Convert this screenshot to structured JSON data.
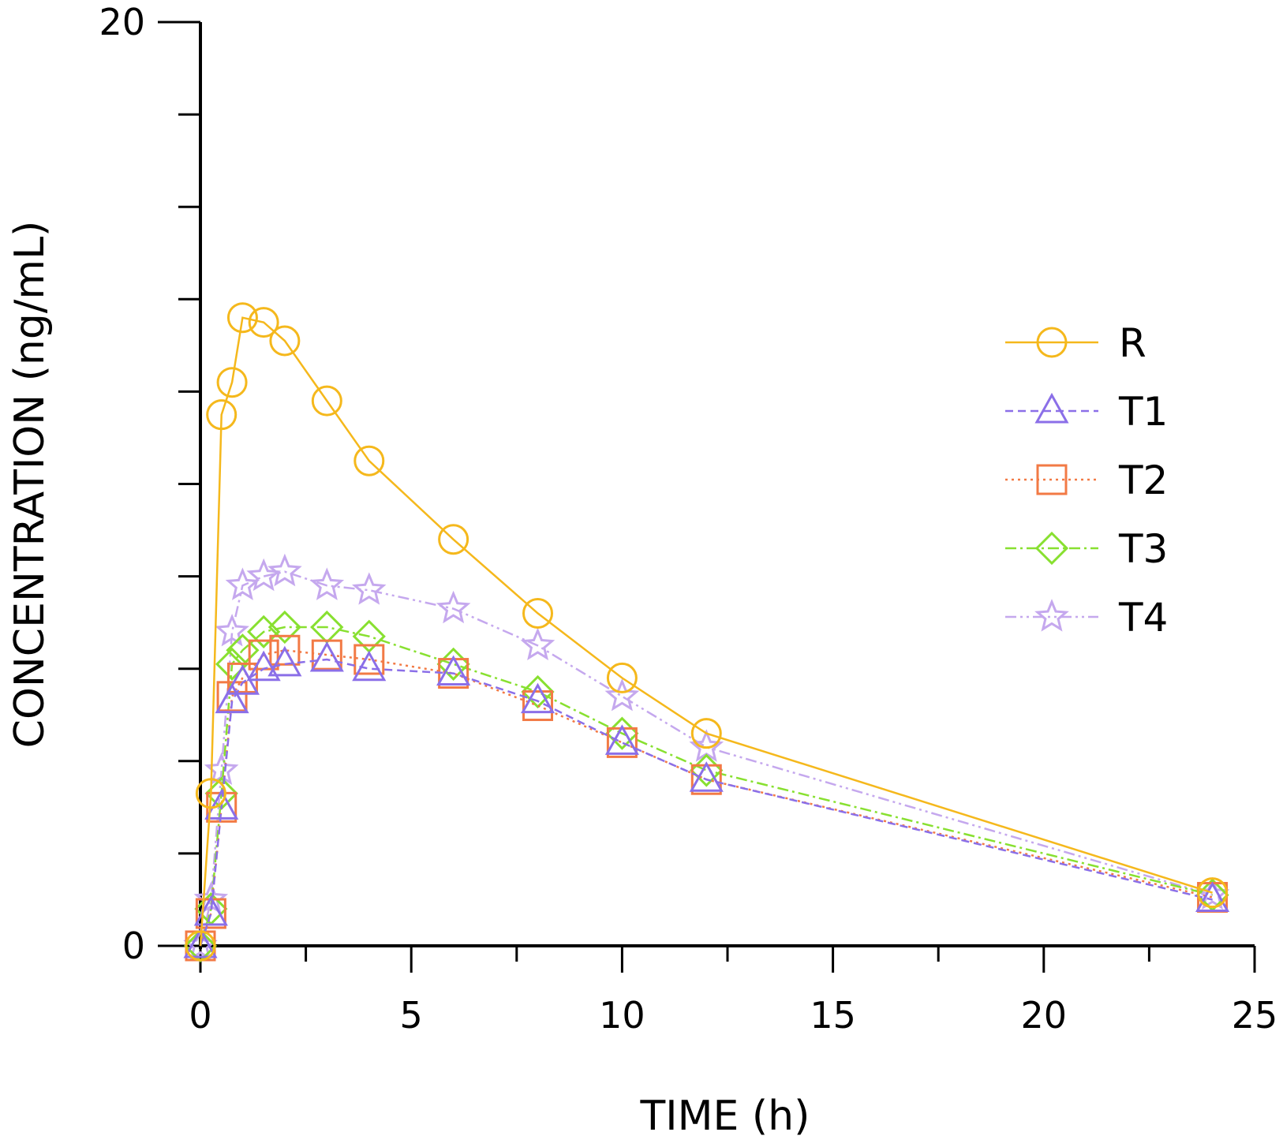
{
  "chart_data": {
    "type": "line",
    "title": "",
    "xlabel": "TIME (h)",
    "ylabel": "CONCENTRATION (ng/mL)",
    "xlim": [
      0,
      25
    ],
    "ylim": [
      0,
      20
    ],
    "x_major_ticks": [
      0,
      5,
      10,
      15,
      20,
      25
    ],
    "x_minor_ticks": [
      2.5,
      7.5,
      12.5,
      17.5,
      22.5
    ],
    "y_major_ticks": [
      0,
      20
    ],
    "y_minor_ticks": [
      2,
      4,
      6,
      8,
      10,
      12,
      14,
      16,
      18
    ],
    "x": [
      0,
      0.25,
      0.5,
      0.75,
      1,
      1.5,
      2,
      3,
      4,
      6,
      8,
      10,
      12,
      24
    ],
    "legend_position": "right",
    "grid": false,
    "series": [
      {
        "name": "R",
        "color": "#f5b81c",
        "marker": "circle",
        "dash": "",
        "values": [
          0,
          3.3,
          11.5,
          12.2,
          13.6,
          13.5,
          13.1,
          11.8,
          10.5,
          8.8,
          7.2,
          5.8,
          4.6,
          1.15
        ]
      },
      {
        "name": "T1",
        "color": "#8b6fe8",
        "marker": "triangle",
        "dash": "10,6",
        "values": [
          0,
          0.7,
          3.0,
          5.3,
          5.7,
          6.0,
          6.1,
          6.2,
          6.0,
          5.9,
          5.3,
          4.4,
          3.6,
          1.0
        ]
      },
      {
        "name": "T2",
        "color": "#f27a45",
        "marker": "square",
        "dash": "3,5",
        "values": [
          0,
          0.7,
          3.0,
          5.4,
          5.8,
          6.3,
          6.4,
          6.3,
          6.2,
          5.9,
          5.2,
          4.4,
          3.6,
          1.05
        ]
      },
      {
        "name": "T3",
        "color": "#88e030",
        "marker": "diamond",
        "dash": "14,5,3,5",
        "values": [
          0,
          0.8,
          3.3,
          6.1,
          6.4,
          6.8,
          6.9,
          6.9,
          6.7,
          6.1,
          5.5,
          4.6,
          3.8,
          1.1
        ]
      },
      {
        "name": "T4",
        "color": "#c5a8ee",
        "marker": "star",
        "dash": "14,5,3,5,3,5",
        "values": [
          0,
          1.0,
          3.8,
          6.8,
          7.8,
          8.0,
          8.1,
          7.8,
          7.7,
          7.3,
          6.5,
          5.4,
          4.3,
          1.1
        ]
      }
    ]
  }
}
